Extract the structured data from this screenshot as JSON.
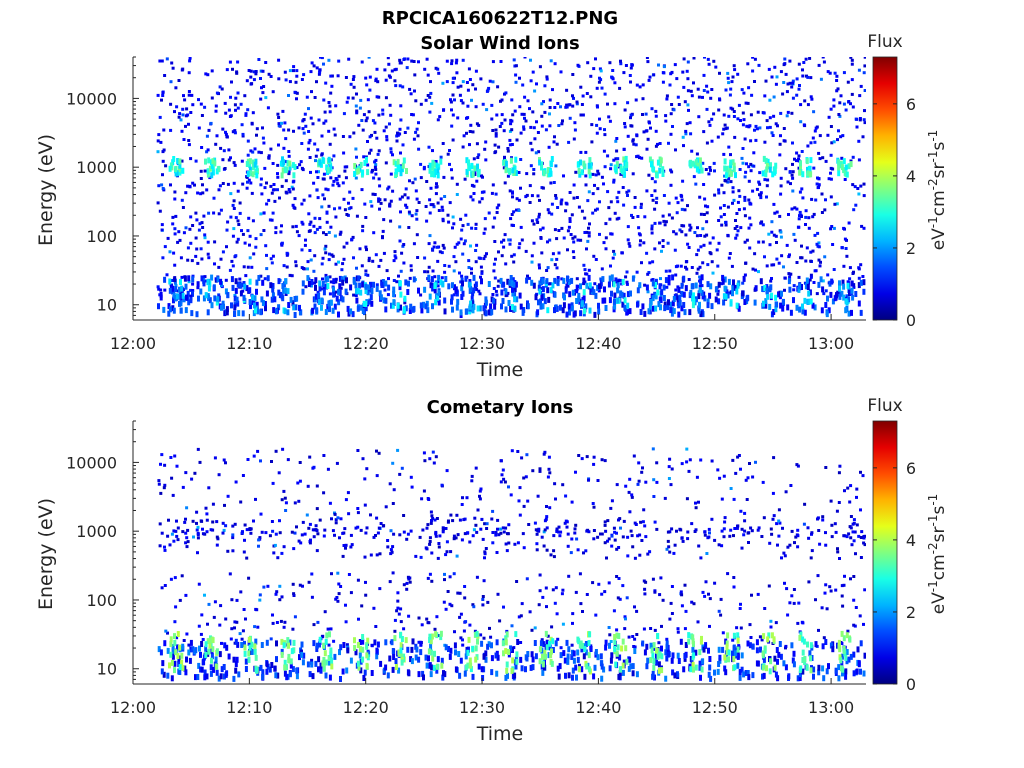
{
  "figure_title": "RPCICA160622T12.PNG",
  "chart_data": [
    {
      "type": "heatmap",
      "title": "Solar Wind Ions",
      "xlabel": "Time",
      "ylabel": "Energy (eV)",
      "x_range": [
        "12:00",
        "13:03"
      ],
      "x_ticks": [
        "12:00",
        "12:10",
        "12:20",
        "12:30",
        "12:40",
        "12:50",
        "13:00"
      ],
      "y_scale": "log",
      "y_range_eV": [
        6,
        40000
      ],
      "y_ticks": [
        "10",
        "100",
        "1000",
        "10000"
      ],
      "colorbar": {
        "title": "Flux",
        "label": "eV-1cm-2sr-1s-1",
        "range": [
          0,
          7.3
        ],
        "ticks": [
          "0",
          "2",
          "4",
          "6"
        ],
        "colormap": "jet"
      },
      "features": {
        "burst_energy_eV": 1000,
        "burst_flux": 3,
        "burst_times_min": [
          3.6,
          6.7,
          10.0,
          13.2,
          16.4,
          19.5,
          22.8,
          25.9,
          29.1,
          32.3,
          35.4,
          38.7,
          41.8,
          44.9,
          48.2,
          51.3,
          54.6,
          57.7,
          61.0
        ],
        "background_flux": 0.5
      }
    },
    {
      "type": "heatmap",
      "title": "Cometary Ions",
      "xlabel": "Time",
      "ylabel": "Energy (eV)",
      "x_range": [
        "12:00",
        "13:03"
      ],
      "x_ticks": [
        "12:00",
        "12:10",
        "12:20",
        "12:30",
        "12:40",
        "12:50",
        "13:00"
      ],
      "y_scale": "log",
      "y_range_eV": [
        6,
        40000
      ],
      "y_ticks": [
        "10",
        "100",
        "1000",
        "10000"
      ],
      "colorbar": {
        "title": "Flux",
        "label": "eV-1cm-2sr-1s-1",
        "range": [
          0,
          7.3
        ],
        "ticks": [
          "0",
          "2",
          "4",
          "6"
        ],
        "colormap": "jet"
      },
      "features": {
        "burst_energy_eV": 12,
        "burst_flux": 3.5,
        "burst_times_min": [
          3.6,
          6.7,
          10.0,
          13.2,
          16.4,
          19.5,
          22.8,
          25.9,
          29.1,
          32.3,
          35.4,
          38.7,
          41.8,
          44.9,
          48.2,
          51.3,
          54.6,
          57.7,
          61.0
        ],
        "background_flux": 0.4
      }
    }
  ]
}
